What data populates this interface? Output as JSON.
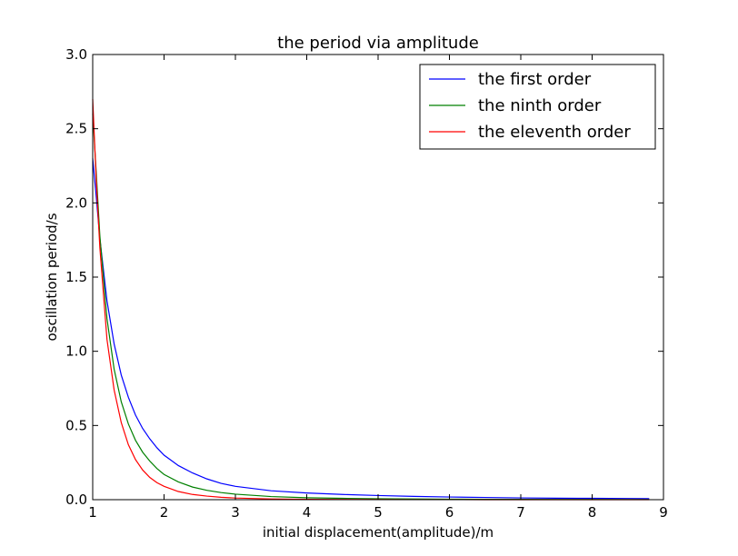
{
  "chart_data": {
    "type": "line",
    "title": "the period via amplitude",
    "xlabel": "initial displacement(amplitude)/m",
    "ylabel": "oscillation period/s",
    "xlim": [
      1,
      9
    ],
    "ylim": [
      0,
      3.0
    ],
    "xticks": [
      "1",
      "2",
      "3",
      "4",
      "5",
      "6",
      "7",
      "8",
      "9"
    ],
    "yticks": [
      "0.0",
      "0.5",
      "1.0",
      "1.5",
      "2.0",
      "2.5",
      "3.0"
    ],
    "grid": false,
    "legend_position": "top-right",
    "series": [
      {
        "name": "the first order",
        "color": "#0000ff",
        "x": [
          1.0,
          1.05,
          1.1,
          1.2,
          1.3,
          1.4,
          1.5,
          1.6,
          1.7,
          1.8,
          1.9,
          2.0,
          2.2,
          2.4,
          2.6,
          2.8,
          3.0,
          3.5,
          4.0,
          4.5,
          5.0,
          5.5,
          6.0,
          6.5,
          7.0,
          7.5,
          8.0,
          8.5,
          8.8
        ],
        "y": [
          2.3,
          2.04,
          1.76,
          1.34,
          1.05,
          0.84,
          0.69,
          0.57,
          0.48,
          0.41,
          0.35,
          0.3,
          0.23,
          0.18,
          0.14,
          0.11,
          0.09,
          0.06,
          0.045,
          0.035,
          0.028,
          0.022,
          0.018,
          0.015,
          0.012,
          0.01,
          0.009,
          0.008,
          0.007
        ]
      },
      {
        "name": "the ninth order",
        "color": "#008000",
        "x": [
          1.0,
          1.05,
          1.1,
          1.2,
          1.3,
          1.4,
          1.5,
          1.6,
          1.7,
          1.8,
          1.9,
          2.0,
          2.2,
          2.4,
          2.6,
          2.8,
          3.0,
          3.5,
          4.0,
          4.5,
          5.0,
          5.5,
          6.0,
          6.5,
          7.0,
          7.5,
          8.0,
          8.5,
          8.8
        ],
        "y": [
          2.6,
          2.2,
          1.78,
          1.22,
          0.88,
          0.66,
          0.51,
          0.4,
          0.32,
          0.26,
          0.21,
          0.17,
          0.12,
          0.085,
          0.063,
          0.048,
          0.037,
          0.021,
          0.013,
          0.009,
          0.006,
          0.0045,
          0.0035,
          0.0028,
          0.0022,
          0.0018,
          0.0015,
          0.0012,
          0.001
        ]
      },
      {
        "name": "the eleventh order",
        "color": "#ff0000",
        "x": [
          1.0,
          1.05,
          1.1,
          1.2,
          1.3,
          1.4,
          1.5,
          1.6,
          1.7,
          1.8,
          1.9,
          2.0,
          2.2,
          2.4,
          2.6,
          2.8,
          3.0,
          3.5,
          4.0,
          4.5,
          5.0,
          5.5,
          6.0,
          6.5,
          7.0,
          7.5,
          8.0,
          8.5,
          8.8
        ],
        "y": [
          2.7,
          2.15,
          1.7,
          1.08,
          0.74,
          0.52,
          0.37,
          0.27,
          0.2,
          0.15,
          0.115,
          0.09,
          0.055,
          0.035,
          0.024,
          0.016,
          0.011,
          0.005,
          0.0025,
          0.0014,
          0.0008,
          0.0005,
          0.0003,
          0.0002,
          0.0001,
          0.0001,
          0.0,
          0.0,
          0.0
        ]
      }
    ]
  }
}
